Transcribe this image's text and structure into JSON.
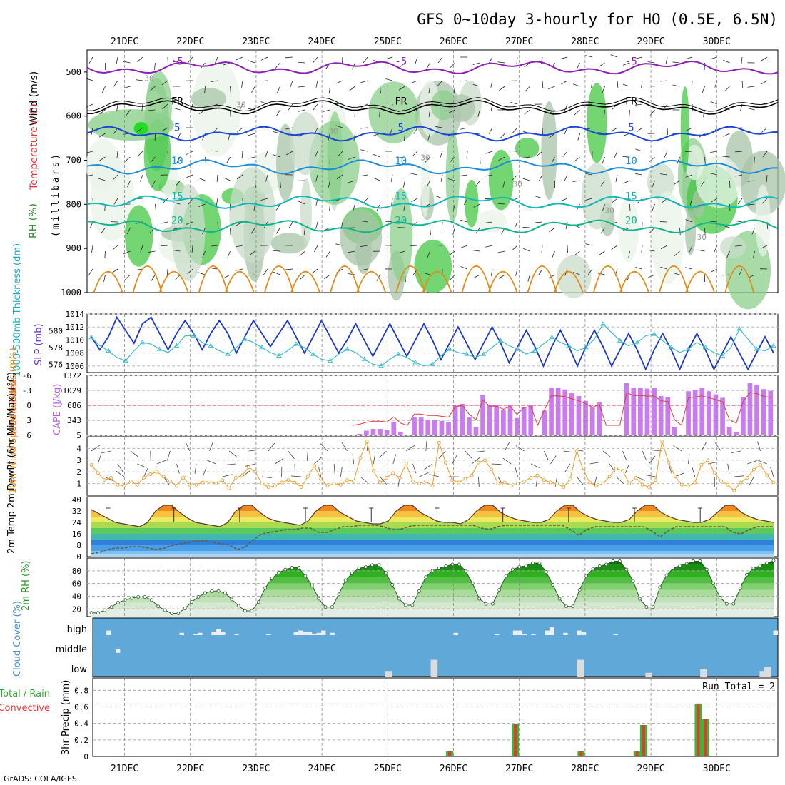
{
  "title": "GFS 0~10day 3-hourly for HO (0.5E, 6.5N)",
  "credit": "GrADS: COLA/IGES",
  "colors": {
    "t_purple": "#8c1fb4",
    "t_blue": "#1a46d8",
    "t_lightblue": "#1a8cd8",
    "t_cyan": "#10b8b8",
    "t_teal": "#10b48c",
    "t_orange": "#e08c1a",
    "freezing": "#000000",
    "rh_green": "#33cc33",
    "slp_line": "#1b36c8",
    "thick_line": "#3cbcd0",
    "cape_bar": "#c87cf0",
    "li_line": "#e03c3c",
    "wind_line": "#f0a030",
    "barb": "#444444",
    "dew_line": "#6a5a4a",
    "cloud_fill": "#5fa8d8",
    "precip_total": "#33bb33",
    "precip_conv": "#ee3333"
  },
  "chart_data": [
    {
      "type": "heatmap",
      "id": "upper-air",
      "labels": [
        "Wind (m/s)",
        "Temperature (°C)",
        "RH (%)"
      ],
      "ylabel": "(millibars)",
      "x_ticks": [
        "21DEC",
        "22DEC",
        "23DEC",
        "24DEC",
        "25DEC",
        "26DEC",
        "27DEC",
        "28DEC",
        "29DEC",
        "30DEC"
      ],
      "y_ticks": [
        500,
        600,
        700,
        800,
        900,
        1000
      ],
      "ylim": [
        450,
        1000
      ],
      "temperature_contours": [
        {
          "value": -5,
          "label": "-5",
          "level_mb": 490
        },
        {
          "value": "FR",
          "label": "FR",
          "level_mb": 580
        },
        {
          "value": 5,
          "label": "5",
          "level_mb": 640
        },
        {
          "value": 10,
          "label": "10",
          "level_mb": 715
        },
        {
          "value": 15,
          "label": "15",
          "level_mb": 795
        },
        {
          "value": 20,
          "label": "20",
          "level_mb": 850
        }
      ],
      "rh_contour_labels": [
        "30",
        "30",
        "30",
        "30",
        "30",
        "30",
        "30"
      ]
    },
    {
      "type": "line",
      "id": "slp-thickness",
      "ylabel_left": "1000-500mb Thickness (dm)",
      "ylabel_right": "SLP (mb)",
      "left_ticks": [
        576,
        578,
        580
      ],
      "right_ticks": [
        1006,
        1008,
        1010,
        1012,
        1014
      ],
      "ylim_slp": [
        1005,
        1014
      ],
      "slp_values": [
        1010.5,
        1008.5,
        1010.5,
        1013.5,
        1011.5,
        1009.5,
        1012.5,
        1013.5,
        1011,
        1008.5,
        1011,
        1013,
        1011,
        1008.5,
        1011,
        1013,
        1011,
        1008,
        1010.5,
        1013,
        1011,
        1009,
        1011,
        1013,
        1010.5,
        1008,
        1010.5,
        1013,
        1010.5,
        1008,
        1010,
        1012.5,
        1010,
        1007.5,
        1010,
        1012.5,
        1010,
        1007.5,
        1010,
        1012.5,
        1010,
        1007,
        1009.5,
        1012,
        1009.5,
        1007,
        1009.5,
        1012,
        1009.5,
        1006.5,
        1009,
        1011.5,
        1009,
        1006,
        1009,
        1011.5,
        1009,
        1006,
        1009,
        1011.5,
        1009,
        1006,
        1008.5,
        1011,
        1008.5,
        1005.5,
        1008.5,
        1011,
        1008.5,
        1005.5,
        1008.5,
        1011,
        1008.5,
        1005.5,
        1008,
        1010.5,
        1008,
        1005.5,
        1008,
        1010.5,
        1008
      ],
      "thickness_values": [
        579.2,
        578.2,
        577.6,
        576.8,
        576.4,
        577.6,
        578.6,
        578.4,
        577.8,
        577.4,
        578.2,
        579.4,
        579.4,
        578.6,
        578.2,
        577.6,
        577.2,
        578,
        579,
        578.6,
        578,
        577.4,
        577,
        577.6,
        578.4,
        578,
        577.2,
        576.6,
        576.4,
        577.2,
        577.8,
        577.4,
        576.6,
        576,
        575.8,
        576.6,
        577.2,
        576.8,
        576.2,
        575.8,
        576,
        577,
        577.8,
        577.4,
        577.2,
        576.8,
        577.2,
        578,
        578.8,
        578.2,
        577.8,
        577.2,
        577.6,
        578.4,
        579.2,
        578.6,
        578.2,
        577.6,
        578,
        579,
        580.8,
        579.8,
        578.8,
        578.2,
        578.6,
        579.4,
        579.6,
        578.8,
        578,
        577.4,
        577.8,
        578.6,
        578,
        577.4,
        577,
        578,
        580.2,
        579,
        577.8,
        577.6,
        578.2
      ]
    },
    {
      "type": "bar",
      "id": "cape-li",
      "ylabel_left": "Lifted Index",
      "ylabel_right": "CAPE (J/kg)",
      "left_ticks": [
        -6,
        -3,
        0,
        3,
        6
      ],
      "left_tick_labels": [
        "-6",
        "-3",
        "0",
        "3",
        "6"
      ],
      "right_ticks": [
        5,
        343,
        686,
        1029,
        1372
      ],
      "ylim_cape": [
        5,
        1372
      ],
      "cape_values": [
        0,
        0,
        0,
        0,
        0,
        0,
        0,
        0,
        0,
        0,
        0,
        0,
        0,
        0,
        0,
        0,
        0,
        0,
        0,
        0,
        0,
        0,
        0,
        0,
        0,
        0,
        0,
        0,
        0,
        0,
        0,
        0,
        0,
        0,
        0,
        0,
        0,
        0,
        0,
        40,
        110,
        150,
        150,
        120,
        310,
        80,
        0,
        410,
        410,
        360,
        360,
        330,
        300,
        680,
        720,
        410,
        200,
        930,
        700,
        700,
        590,
        700,
        400,
        650,
        690,
        0,
        570,
        1080,
        1080,
        1050,
        970,
        900,
        790,
        660,
        760,
        0,
        0,
        0,
        1200,
        1090,
        1090,
        1070,
        1080,
        900,
        870,
        200,
        0,
        1010,
        1040,
        1080,
        1010,
        940,
        860,
        200,
        80,
        870,
        1200,
        1160,
        1060,
        1020
      ]
    },
    {
      "type": "line",
      "id": "wind-10m",
      "ylabel": "10m Wind Speed & Barbs (m/s)",
      "y_ticks": [
        1,
        2,
        3,
        4
      ],
      "ylim": [
        0,
        5
      ],
      "values": [
        2.6,
        1.9,
        1.3,
        1.5,
        0.9,
        0.8,
        1.2,
        0.9,
        1.5,
        1.8,
        2.0,
        1.6,
        1.2,
        0.8,
        1.5,
        0.9,
        0.9,
        1.1,
        1.2,
        1.0,
        1.3,
        0.6,
        1.5,
        1.7,
        2.4,
        2.0,
        1.0,
        0.7,
        0.8,
        1.1,
        1.3,
        1.1,
        0.7,
        1.6,
        2.5,
        1.4,
        0.8,
        1.0,
        0.9,
        1.3,
        1.2,
        3.2,
        4.6,
        2.1,
        1.1,
        1.5,
        1.9,
        1.5,
        2.7,
        1.2,
        1.0,
        1.2,
        0.8,
        4.5,
        2.8,
        1.3,
        1.1,
        1.4,
        1.7,
        2.8,
        3.0,
        2.2,
        1.0,
        1.1,
        0.8,
        1.0,
        1.2,
        1.5,
        1.7,
        1.3,
        1.1,
        1.0,
        0.7,
        1.4,
        3.8,
        2.1,
        1.1,
        0.8,
        1.0,
        1.6,
        2.3,
        2.1,
        1.0,
        1.5,
        0.9,
        0.7,
        1.3,
        4.6,
        2.8,
        1.6,
        0.9,
        0.8,
        1.1,
        2.6,
        3.0,
        1.9,
        1.2,
        0.9,
        0.4,
        1.1,
        1.5,
        2.2,
        2.6,
        1.7,
        1.1
      ]
    },
    {
      "type": "area",
      "id": "temp-dewpoint",
      "ylabel": "2m Temp 2m DewPt (6hr Min/Max) (°C)",
      "y_ticks": [
        0,
        8,
        16,
        24,
        32,
        40
      ],
      "y_tick_labels": [
        "0",
        "8",
        "16",
        "24",
        "32",
        "40"
      ],
      "ylim": [
        0,
        42
      ],
      "temp_values": [
        33,
        30,
        27,
        24,
        23,
        22,
        21,
        24,
        32,
        36,
        36,
        31,
        27,
        24,
        23,
        22,
        21,
        24,
        32,
        36,
        36,
        31,
        27,
        25,
        24,
        23,
        22,
        25,
        32,
        36,
        36,
        31,
        28,
        25,
        24,
        23,
        23,
        25,
        32,
        36,
        36,
        31,
        28,
        25,
        24,
        24,
        23,
        26,
        32,
        36,
        36,
        31,
        28,
        26,
        25,
        24,
        24,
        26,
        32,
        36,
        36,
        31,
        28,
        26,
        25,
        24,
        24,
        26,
        32,
        36,
        36,
        31,
        28,
        26,
        25,
        24,
        24,
        26,
        31,
        36,
        36,
        31,
        28,
        26,
        25,
        24
      ],
      "dewpoint_values": [
        2,
        3,
        5,
        6,
        6,
        7,
        7,
        6,
        5,
        6,
        8,
        9,
        10,
        11,
        11,
        10,
        9,
        8,
        5,
        7,
        12,
        16,
        17,
        18,
        19,
        19,
        20,
        20,
        17,
        17,
        19,
        21,
        21,
        22,
        22,
        22,
        21,
        19,
        19,
        21,
        22,
        22,
        22,
        22,
        22,
        22,
        22,
        22,
        20,
        19,
        21,
        22,
        22,
        22,
        22,
        22,
        22,
        22,
        22,
        19,
        15,
        19,
        21,
        21,
        21,
        21,
        21,
        21,
        21,
        18,
        14,
        18,
        21,
        21,
        21,
        21,
        21,
        21,
        21,
        17,
        16,
        19,
        21,
        21,
        21
      ]
    },
    {
      "type": "area",
      "id": "rh-2m",
      "ylabel": "2m RH (%)",
      "y_ticks": [
        20,
        40,
        60,
        80
      ],
      "ylim": [
        8,
        100
      ],
      "values": [
        14,
        14,
        18,
        23,
        30,
        34,
        37,
        39,
        39,
        34,
        24,
        18,
        13,
        13,
        21,
        31,
        39,
        45,
        48,
        48,
        45,
        35,
        25,
        17,
        17,
        31,
        53,
        68,
        77,
        82,
        85,
        85,
        72,
        57,
        36,
        23,
        23,
        43,
        65,
        76,
        84,
        86,
        89,
        89,
        77,
        58,
        36,
        26,
        26,
        48,
        70,
        80,
        84,
        87,
        90,
        90,
        79,
        60,
        36,
        28,
        28,
        50,
        72,
        82,
        86,
        88,
        92,
        92,
        78,
        58,
        36,
        24,
        24,
        50,
        72,
        83,
        87,
        90,
        95,
        95,
        82,
        64,
        36,
        23,
        23,
        54,
        73,
        84,
        88,
        91,
        95,
        95,
        82,
        60,
        38,
        28,
        28,
        52,
        74,
        84,
        88,
        92,
        96
      ]
    },
    {
      "type": "bar",
      "id": "cloud-cover",
      "ylabel": "Cloud Cover (%)",
      "y_labels": [
        "high",
        "middle",
        "low"
      ],
      "high_values": [
        0,
        0,
        0,
        40,
        0,
        0,
        0,
        0,
        0,
        0,
        0,
        0,
        0,
        0,
        0,
        0,
        0,
        0,
        0,
        20,
        0,
        0,
        10,
        20,
        0,
        0,
        30,
        50,
        30,
        0,
        0,
        10,
        0,
        0,
        0,
        0,
        0,
        0,
        10,
        0,
        0,
        0,
        0,
        0,
        30,
        40,
        30,
        30,
        10,
        20,
        40,
        0,
        20,
        0,
        0,
        0,
        0,
        0,
        0,
        0,
        0,
        0,
        0,
        0,
        0,
        0,
        0,
        0,
        0,
        0,
        0,
        0,
        0,
        0,
        0,
        0,
        0,
        0,
        0,
        20,
        0,
        0,
        0,
        0,
        0,
        0,
        0,
        0,
        10,
        0,
        0,
        0,
        40,
        40,
        10,
        0,
        10,
        0,
        0,
        40,
        70,
        0,
        0,
        20,
        0,
        0,
        40,
        30,
        0,
        0,
        0,
        0,
        0,
        0,
        10,
        0,
        0,
        0,
        0,
        0,
        0,
        0,
        0,
        0,
        0,
        0,
        0,
        0,
        0,
        0,
        0,
        0,
        0,
        0,
        0,
        0,
        0,
        0,
        0,
        0,
        0,
        0,
        0,
        0,
        0,
        0,
        0,
        0,
        0,
        40
      ],
      "middle_values": [
        0,
        0,
        0,
        0,
        0,
        30,
        0,
        0,
        0,
        0,
        0,
        0,
        0,
        0,
        0,
        0,
        0,
        0,
        0,
        0,
        0,
        0,
        0,
        0,
        0,
        0,
        0,
        0,
        0,
        0,
        0,
        0,
        0,
        0,
        0,
        0,
        0,
        0,
        0,
        0,
        0,
        0,
        0,
        0,
        0,
        0,
        0,
        0,
        0,
        0,
        0,
        0,
        0,
        0,
        0,
        0,
        0,
        0,
        0,
        0,
        0,
        0,
        0,
        0,
        0,
        0,
        0,
        0,
        0,
        0,
        0,
        0,
        0,
        0,
        0,
        0,
        0,
        0,
        0,
        0,
        0,
        0,
        0,
        0,
        0,
        0,
        0,
        0,
        0,
        0,
        0,
        0,
        0,
        0,
        0,
        0,
        0,
        0,
        0,
        0,
        0,
        0,
        0,
        0,
        0,
        0,
        0,
        0,
        0,
        0,
        0,
        0,
        0,
        0,
        0,
        0,
        0,
        0,
        0,
        0,
        0,
        0,
        0,
        0,
        0,
        0,
        0,
        0,
        0,
        0,
        0,
        0,
        0,
        0,
        0,
        0,
        0,
        0,
        0,
        0,
        0,
        0,
        0,
        0,
        0,
        0,
        0,
        0,
        0,
        0
      ],
      "low_values": [
        0,
        0,
        0,
        0,
        0,
        0,
        0,
        0,
        0,
        0,
        0,
        0,
        0,
        0,
        0,
        0,
        0,
        0,
        0,
        0,
        0,
        0,
        0,
        0,
        0,
        0,
        0,
        0,
        0,
        0,
        0,
        0,
        0,
        0,
        0,
        0,
        0,
        0,
        0,
        0,
        0,
        0,
        0,
        0,
        0,
        0,
        0,
        0,
        0,
        0,
        0,
        0,
        0,
        0,
        0,
        0,
        0,
        0,
        0,
        0,
        0,
        0,
        0,
        0,
        0,
        0,
        0,
        0,
        0,
        0,
        0,
        0,
        0,
        0,
        0,
        0,
        0,
        0,
        0,
        0,
        0,
        0,
        0,
        0,
        0,
        0,
        0,
        0,
        0,
        0,
        0,
        0,
        0,
        0,
        0,
        0,
        0,
        0,
        0,
        0,
        0,
        0,
        0,
        0,
        0,
        0,
        0,
        0,
        0,
        0,
        0,
        0,
        0,
        0,
        0,
        0,
        0,
        0,
        0,
        0,
        0,
        0,
        0,
        0,
        0,
        0,
        0,
        0,
        0,
        0,
        0,
        0,
        0,
        0,
        0,
        0,
        0,
        0,
        0,
        0,
        0,
        0,
        0,
        0,
        0,
        0,
        0,
        0,
        0,
        0
      ]
    },
    {
      "type": "bar",
      "id": "precip",
      "ylabel": "3hr Precip (mm)",
      "series_labels": [
        "Total / Rain",
        "Convective"
      ],
      "annotation": "Run Total = 2",
      "y_ticks": [
        0,
        0.2,
        0.4,
        0.6,
        0.8
      ],
      "y_tick_labels": [
        "0",
        "0.2",
        "0.4",
        "0.6",
        "0.8"
      ],
      "ylim": [
        0,
        0.95
      ],
      "events": [
        {
          "x": 4.94,
          "value": 0.06
        },
        {
          "x": 5.94,
          "value": 0.39
        },
        {
          "x": 6.94,
          "value": 0.06
        },
        {
          "x": 7.79,
          "value": 0.06
        },
        {
          "x": 7.89,
          "value": 0.38
        },
        {
          "x": 8.72,
          "value": 0.64
        },
        {
          "x": 8.83,
          "value": 0.45
        }
      ],
      "x_ticks": [
        "21DEC",
        "22DEC",
        "23DEC",
        "24DEC",
        "25DEC",
        "26DEC",
        "27DEC",
        "28DEC",
        "29DEC",
        "30DEC"
      ]
    }
  ]
}
